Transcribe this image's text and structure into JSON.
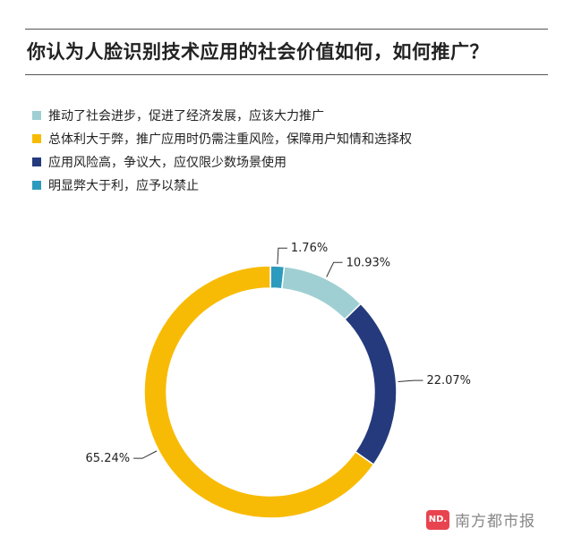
{
  "chart_data": {
    "type": "pie",
    "title": "你认为人脸识别技术应用的社会价值如何，如何推广？",
    "categories": [
      "推动了社会进步，促进了经济发展，应该大力推广",
      "总体利大于弊，推广应用时仍需注重风险，保障用户知情和选择权",
      "应用风险高，争议大，应仅限少数场景使用",
      "明显弊大于利，应予以禁止"
    ],
    "values": [
      10.93,
      65.24,
      22.07,
      1.76
    ],
    "slice_order_clockwise_from_top": [
      3,
      0,
      2,
      1
    ],
    "colors": [
      "#9fcfd2",
      "#f8bb05",
      "#243a7c",
      "#2d9bbd"
    ],
    "data_labels": [
      "10.93%",
      "65.24%",
      "22.07%",
      "1.76%"
    ],
    "legend_position": "top-left",
    "donut": true
  },
  "watermark": {
    "logo_text": "ND.",
    "text": "南方都市报"
  }
}
